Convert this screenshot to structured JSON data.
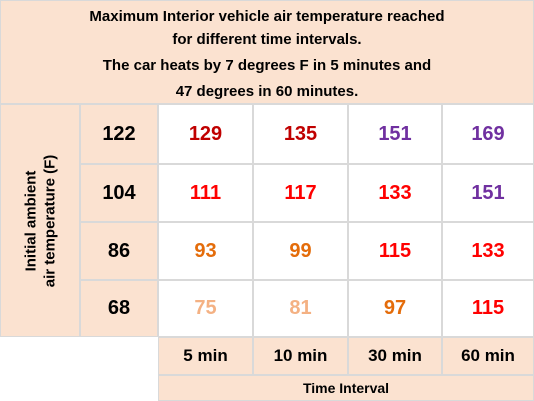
{
  "header": {
    "lines": [
      "Maximum Interior vehicle air temperature reached",
      "for different time intervals.",
      "The car heats by 7 degrees F in 5 minutes and",
      "47 degrees in 60 minutes."
    ]
  },
  "row_axis_label": [
    "Initial ambient",
    "air temperature (F)"
  ],
  "table": {
    "rows": [
      {
        "label": 122,
        "cells": [
          {
            "value": 129,
            "color": "#c00000"
          },
          {
            "value": 135,
            "color": "#c00000"
          },
          {
            "value": 151,
            "color": "#7030a0"
          },
          {
            "value": 169,
            "color": "#7030a0"
          }
        ]
      },
      {
        "label": 104,
        "cells": [
          {
            "value": 111,
            "color": "#ff0000"
          },
          {
            "value": 117,
            "color": "#ff0000"
          },
          {
            "value": 133,
            "color": "#ff0000"
          },
          {
            "value": 151,
            "color": "#7030a0"
          }
        ]
      },
      {
        "label": 86,
        "cells": [
          {
            "value": 93,
            "color": "#e46c0a"
          },
          {
            "value": 99,
            "color": "#e46c0a"
          },
          {
            "value": 115,
            "color": "#ff0000"
          },
          {
            "value": 133,
            "color": "#ff0000"
          }
        ]
      },
      {
        "label": 68,
        "cells": [
          {
            "value": 75,
            "color": "#f4b183"
          },
          {
            "value": 81,
            "color": "#f4b183"
          },
          {
            "value": 97,
            "color": "#e46c0a"
          },
          {
            "value": 115,
            "color": "#ff0000"
          }
        ]
      }
    ],
    "columns": [
      "5 min",
      "10 min",
      "30 min",
      "60 min"
    ],
    "column_axis_label": "Time Interval"
  }
}
